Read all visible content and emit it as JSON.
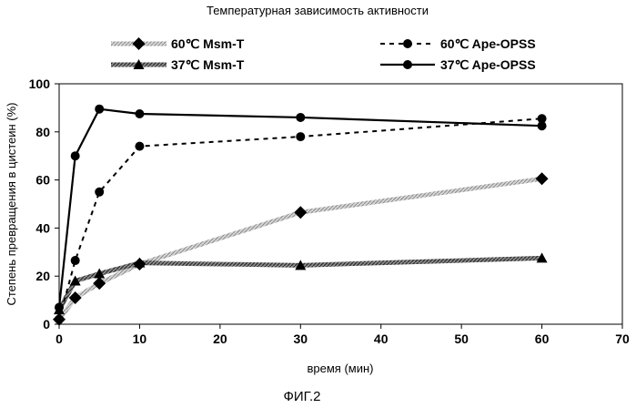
{
  "chart_data": {
    "type": "line",
    "title": "Температурная зависимость активности",
    "xlabel": "время (мин)",
    "ylabel": "Степень превращения в цистеин (%)",
    "xlim": [
      0,
      70
    ],
    "ylim": [
      0,
      100
    ],
    "x_ticks": [
      "0",
      "10",
      "20",
      "30",
      "40",
      "50",
      "60",
      "70"
    ],
    "y_ticks": [
      "0",
      "20",
      "40",
      "60",
      "80",
      "100"
    ],
    "grid": false,
    "legend_position": "top",
    "series": [
      {
        "name": "60℃ Msm-T",
        "x": [
          0,
          2,
          5,
          10,
          30,
          60
        ],
        "y": [
          2,
          11,
          17,
          25,
          46.5,
          60.5
        ],
        "marker": "diamond",
        "line": "grey-hatched",
        "color": "#b0b0b0"
      },
      {
        "name": "37℃ Msm-T",
        "x": [
          0,
          2,
          5,
          10,
          30,
          60
        ],
        "y": [
          6,
          18,
          21,
          25.5,
          24.5,
          27.5
        ],
        "marker": "triangle",
        "line": "dark-hatched",
        "color": "#555555"
      },
      {
        "name": "60℃ Ape-OPSS",
        "x": [
          0,
          2,
          5,
          10,
          30,
          60
        ],
        "y": [
          2,
          26.5,
          55,
          74,
          78,
          85.5
        ],
        "marker": "circle",
        "line": "dashed",
        "color": "#000000"
      },
      {
        "name": "37℃ Ape-OPSS",
        "x": [
          0,
          2,
          5,
          10,
          30,
          60
        ],
        "y": [
          7,
          70,
          89.5,
          87.5,
          86,
          82.5
        ],
        "marker": "circle",
        "line": "solid",
        "color": "#000000"
      }
    ]
  },
  "figure_caption": "ФИГ.2"
}
